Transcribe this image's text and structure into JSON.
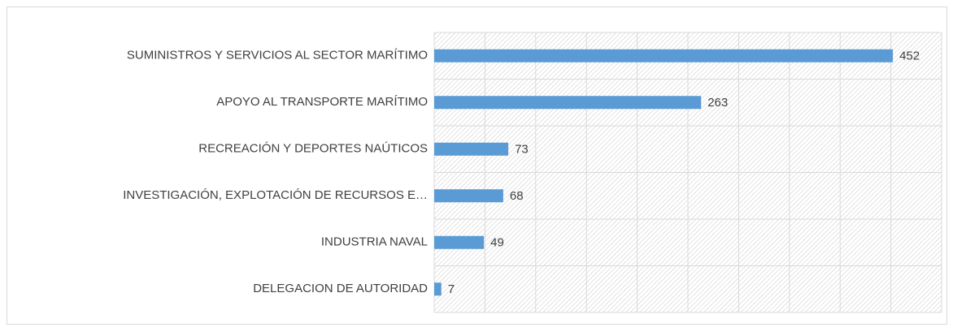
{
  "chart_data": {
    "type": "bar",
    "orientation": "horizontal",
    "categories": [
      "SUMINISTROS Y SERVICIOS AL SECTOR MARÍTIMO",
      "APOYO AL TRANSPORTE MARÍTIMO",
      "RECREACIÓN Y DEPORTES NAÚTICOS",
      "INVESTIGACIÓN, EXPLOTACIÓN DE RECURSOS E…",
      "INDUSTRIA NAVAL",
      "DELEGACION DE AUTORIDAD"
    ],
    "values": [
      452,
      263,
      73,
      68,
      49,
      7
    ],
    "color": "#5b9bd5",
    "xlim": [
      0,
      500
    ],
    "xticks": [
      0,
      50,
      100,
      150,
      200,
      250,
      300,
      350,
      400,
      450,
      500
    ],
    "grid": true
  }
}
